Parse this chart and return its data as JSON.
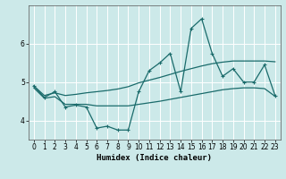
{
  "xlabel": "Humidex (Indice chaleur)",
  "x": [
    0,
    1,
    2,
    3,
    4,
    5,
    6,
    7,
    8,
    9,
    10,
    11,
    12,
    13,
    14,
    15,
    16,
    17,
    18,
    19,
    20,
    21,
    22,
    23
  ],
  "line_main": [
    4.9,
    4.6,
    4.75,
    4.35,
    4.4,
    4.35,
    3.8,
    3.85,
    3.75,
    3.75,
    4.75,
    5.3,
    5.5,
    5.75,
    4.75,
    6.4,
    6.65,
    5.75,
    5.15,
    5.35,
    5.0,
    5.0,
    5.45,
    4.65
  ],
  "line_upper": [
    4.9,
    4.65,
    4.72,
    4.65,
    4.68,
    4.72,
    4.75,
    4.78,
    4.82,
    4.88,
    4.98,
    5.05,
    5.12,
    5.2,
    5.28,
    5.35,
    5.42,
    5.48,
    5.52,
    5.55,
    5.55,
    5.55,
    5.55,
    5.53
  ],
  "line_lower": [
    4.85,
    4.58,
    4.62,
    4.42,
    4.42,
    4.42,
    4.38,
    4.38,
    4.38,
    4.38,
    4.42,
    4.46,
    4.5,
    4.55,
    4.6,
    4.65,
    4.7,
    4.75,
    4.8,
    4.83,
    4.85,
    4.85,
    4.83,
    4.63
  ],
  "ylim": [
    3.5,
    7.0
  ],
  "yticks": [
    4,
    5,
    6
  ],
  "bg_color": "#cce9e9",
  "line_color": "#1a6b6b",
  "grid_color": "#ffffff",
  "label_fontsize": 6.5,
  "tick_fontsize": 5.5
}
